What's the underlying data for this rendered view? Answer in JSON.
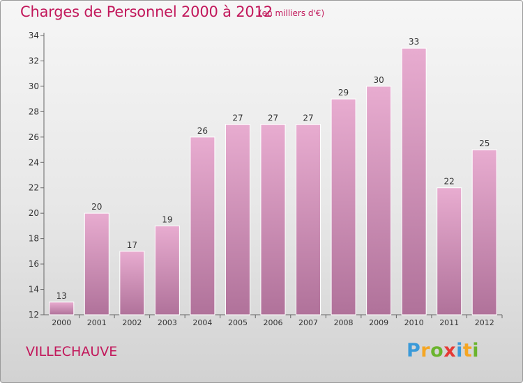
{
  "chart_data": {
    "type": "bar",
    "title": "Charges de Personnel 2000 à 2012",
    "subtitle": "(en milliers d'€)",
    "categories": [
      "2000",
      "2001",
      "2002",
      "2003",
      "2004",
      "2005",
      "2006",
      "2007",
      "2008",
      "2009",
      "2010",
      "2011",
      "2012"
    ],
    "values": [
      13,
      20,
      17,
      19,
      26,
      27,
      27,
      27,
      29,
      30,
      33,
      22,
      25
    ],
    "ylim": [
      12,
      34
    ],
    "yticks": [
      12,
      14,
      16,
      18,
      20,
      22,
      24,
      26,
      28,
      30,
      32,
      34
    ],
    "grid": false,
    "bar_color": "#c97aa6"
  },
  "place": "VILLECHAUVE",
  "brand": {
    "letters": [
      "P",
      "r",
      "o",
      "x",
      "i",
      "t",
      "i"
    ],
    "colors": [
      "#3a9ad9",
      "#f5a623",
      "#6ab42d",
      "#e53935",
      "#3a9ad9",
      "#f5a623",
      "#6ab42d"
    ]
  }
}
